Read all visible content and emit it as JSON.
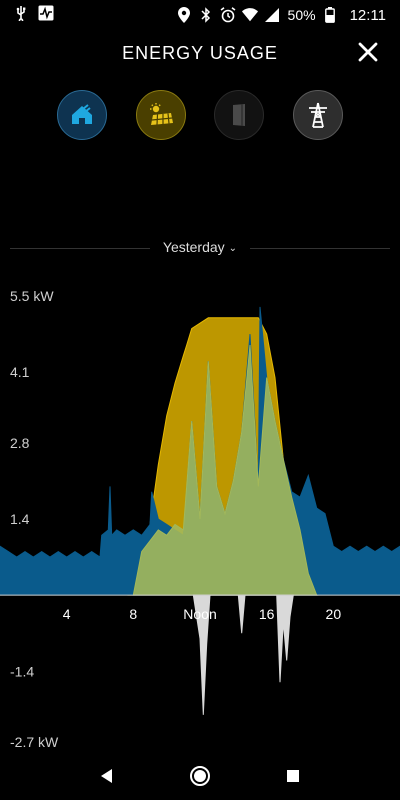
{
  "status_bar": {
    "battery_percent": "50%",
    "time": "12:11",
    "icons": [
      "usb-icon",
      "activity-icon",
      "location-icon",
      "bluetooth-icon",
      "alarm-icon",
      "wifi-icon",
      "signal-icon",
      "battery-icon"
    ]
  },
  "header": {
    "title": "ENERGY USAGE",
    "close_icon": "close-icon"
  },
  "sources": [
    {
      "name": "home",
      "icon": "home-icon",
      "color": "#1fa8e0"
    },
    {
      "name": "solar",
      "icon": "solar-panel-icon",
      "color": "#e6c21a"
    },
    {
      "name": "powerwall",
      "icon": "powerwall-icon",
      "color": "#555555"
    },
    {
      "name": "grid",
      "icon": "grid-tower-icon",
      "color": "#ffffff"
    }
  ],
  "period": {
    "label": "Yesterday",
    "chevron_icon": "chevron-down-icon"
  },
  "chart_data": {
    "type": "area",
    "ylim": [
      -2.7,
      5.5
    ],
    "xlim": [
      0,
      24
    ],
    "y_ticks": [
      {
        "value": 5.5,
        "label": "5.5 kW"
      },
      {
        "value": 4.1,
        "label": "4.1"
      },
      {
        "value": 2.8,
        "label": "2.8"
      },
      {
        "value": 1.4,
        "label": "1.4"
      },
      {
        "value": -1.4,
        "label": "-1.4"
      },
      {
        "value": -2.7,
        "label": "-2.7 kW"
      }
    ],
    "x_ticks": [
      {
        "value": 4,
        "label": "4"
      },
      {
        "value": 8,
        "label": "8"
      },
      {
        "value": 12,
        "label": "Noon"
      },
      {
        "value": 16,
        "label": "16"
      },
      {
        "value": 20,
        "label": "20"
      }
    ],
    "series": [
      {
        "color": "#e6b800",
        "x": [
          7.7,
          8.5,
          9.0,
          9.5,
          10.0,
          10.5,
          11.0,
          11.2,
          11.5,
          12.0,
          12.5,
          13.0,
          13.5,
          14.0,
          14.5,
          15.0,
          15.5,
          16.0,
          16.5,
          17.0,
          17.5,
          18.0,
          18.5,
          19.0
        ],
        "y": [
          0,
          0.4,
          1.3,
          2.4,
          3.3,
          3.9,
          4.4,
          4.6,
          4.9,
          5.0,
          5.1,
          5.1,
          5.1,
          5.1,
          5.1,
          5.1,
          5.1,
          4.8,
          4.0,
          2.5,
          1.2,
          0.5,
          0.1,
          0
        ]
      },
      {
        "color": "#0a5b8c",
        "x": [
          0,
          0.5,
          1,
          1.5,
          2,
          2.5,
          3,
          3.5,
          4,
          4.5,
          5,
          5.5,
          6,
          6.1,
          6.5,
          6.6,
          6.7,
          7,
          7.5,
          8,
          8.5,
          9,
          9.1,
          9.5,
          10,
          10.5,
          11,
          11.5,
          12,
          12.5,
          13,
          13.5,
          14,
          14.5,
          15,
          15.5,
          15.6,
          16,
          16.5,
          17,
          17.5,
          18,
          18.5,
          19,
          19.5,
          20,
          20.5,
          21,
          21.5,
          22,
          22.5,
          23,
          23.5,
          24
        ],
        "y": [
          0.9,
          0.8,
          0.7,
          0.8,
          0.7,
          0.8,
          0.7,
          0.8,
          0.7,
          0.8,
          0.7,
          0.8,
          0.7,
          1.1,
          1.2,
          2.0,
          1.1,
          1.2,
          1.1,
          1.2,
          1.1,
          1.3,
          1.9,
          1.4,
          1.3,
          1.2,
          1.1,
          3.2,
          1.4,
          4.3,
          2.0,
          1.5,
          2.1,
          3.0,
          4.8,
          2.0,
          5.3,
          4.0,
          3.2,
          2.5,
          1.9,
          1.8,
          2.2,
          1.6,
          1.5,
          0.9,
          0.8,
          0.9,
          0.8,
          0.9,
          0.8,
          0.9,
          0.8,
          0.9
        ]
      },
      {
        "color": "#a3b85a",
        "x": [
          8.0,
          8.5,
          9.0,
          9.5,
          10.0,
          10.5,
          11.0,
          11.5,
          12.0,
          12.5,
          13.0,
          13.5,
          14.0,
          14.5,
          15.0,
          15.5,
          16.0,
          16.5,
          17.0,
          17.5,
          18.0,
          18.5,
          19.0
        ],
        "y": [
          0,
          0.8,
          1.0,
          1.2,
          1.1,
          1.3,
          1.2,
          3.2,
          1.4,
          4.3,
          2.0,
          1.5,
          2.1,
          3.0,
          4.6,
          2.0,
          4.0,
          3.2,
          2.5,
          1.8,
          1.2,
          0.4,
          0
        ]
      },
      {
        "color": "#d9d9d9",
        "x": [
          11.6,
          12.0,
          12.2,
          12.4,
          12.6,
          14.3,
          14.5,
          14.7,
          16.6,
          16.8,
          17.0,
          17.2,
          17.4,
          17.6
        ],
        "y": [
          0,
          -0.8,
          -2.2,
          -0.9,
          0,
          0,
          -0.7,
          0,
          0,
          -1.6,
          -0.5,
          -1.2,
          -0.4,
          0
        ]
      }
    ]
  },
  "nav_bar": {
    "back_icon": "back-triangle-icon",
    "home_icon": "home-circle-icon",
    "recents_icon": "recents-square-icon"
  }
}
